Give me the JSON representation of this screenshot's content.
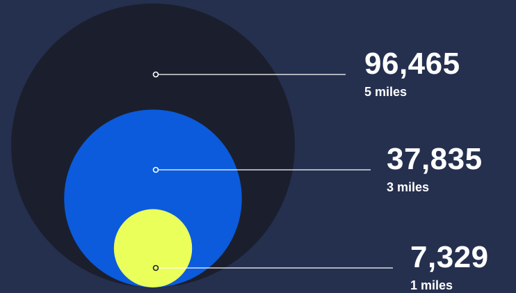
{
  "chart_data": {
    "type": "nested-bubble",
    "title": "",
    "series": [
      {
        "label": "5 miles",
        "radius_miles": 5,
        "value": 96465,
        "value_text": "96,465",
        "color": "#1b1f2d"
      },
      {
        "label": "3 miles",
        "radius_miles": 3,
        "value": 37835,
        "value_text": "37,835",
        "color": "#0b5bdc"
      },
      {
        "label": "1 miles",
        "radius_miles": 1,
        "value": 7329,
        "value_text": "7,329",
        "color": "#eaff5a"
      }
    ]
  },
  "colors": {
    "background": "#25304f",
    "text": "#ffffff",
    "leader_line": "#ffffff"
  }
}
